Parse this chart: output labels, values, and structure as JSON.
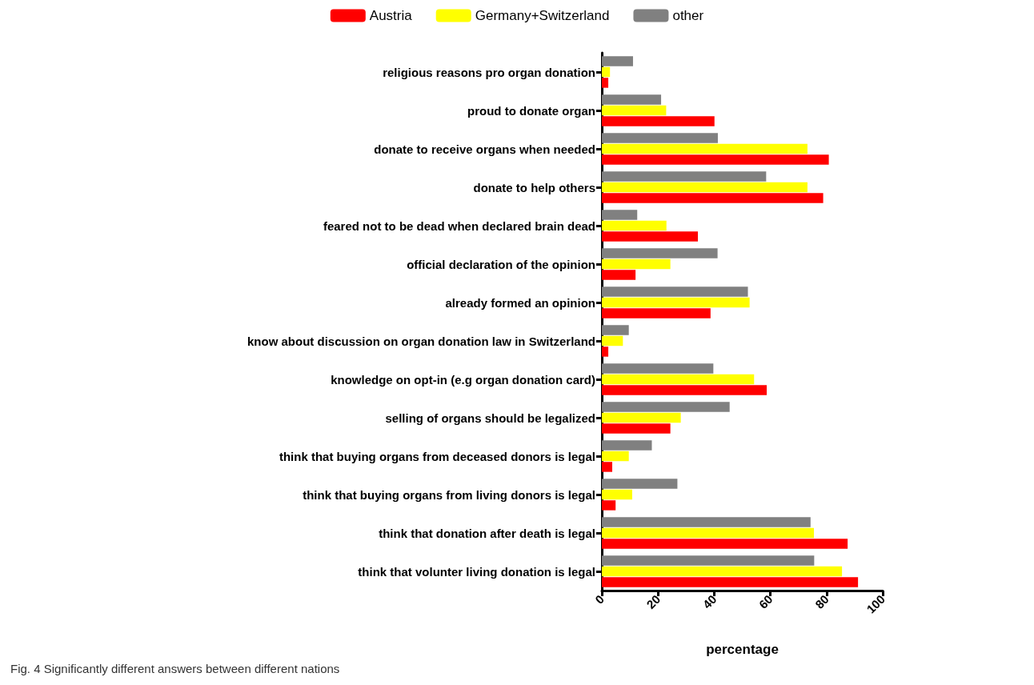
{
  "chart_data": {
    "type": "bar",
    "orientation": "horizontal",
    "categories": [
      "religious reasons pro organ donation",
      "proud to donate organ",
      "donate to receive organs when needed",
      "donate to help others",
      "feared not to be dead when declared brain dead",
      "official declaration of the opinion",
      "already formed an opinion",
      "know about discussion on organ donation law in Switzerland",
      "knowledge on opt-in (e.g organ donation card)",
      "selling of organs should be legalized",
      "think that buying organs from deceased donors is legal",
      "think that buying organs from living donors is legal",
      "think that donation after death is legal",
      "think that volunter living donation is legal"
    ],
    "series": [
      {
        "name": "Austria",
        "color": "#ff0000",
        "values": [
          2.3,
          40.1,
          80.8,
          78.8,
          34.2,
          12.0,
          38.7,
          2.3,
          58.7,
          24.4,
          3.7,
          4.9,
          87.5,
          91.2
        ]
      },
      {
        "name": "Germany+Switzerland",
        "color": "#ffff00",
        "values": [
          2.9,
          22.9,
          73.2,
          73.2,
          23.0,
          24.4,
          52.6,
          7.5,
          54.2,
          28.1,
          9.6,
          10.8,
          75.5,
          85.5
        ]
      },
      {
        "name": "other",
        "color": "#808080",
        "values": [
          11.1,
          21.1,
          41.3,
          58.5,
          12.6,
          41.2,
          52.0,
          9.6,
          39.7,
          45.5,
          17.8,
          26.9,
          74.3,
          75.6
        ]
      }
    ],
    "xlabel": "percentage",
    "xlim": [
      0,
      100
    ],
    "xticks": [
      0,
      20,
      40,
      60,
      80,
      100
    ],
    "legend": "top",
    "grid": false,
    "annotations": [
      "Fig. 4 Significantly different answers between different nations"
    ]
  }
}
